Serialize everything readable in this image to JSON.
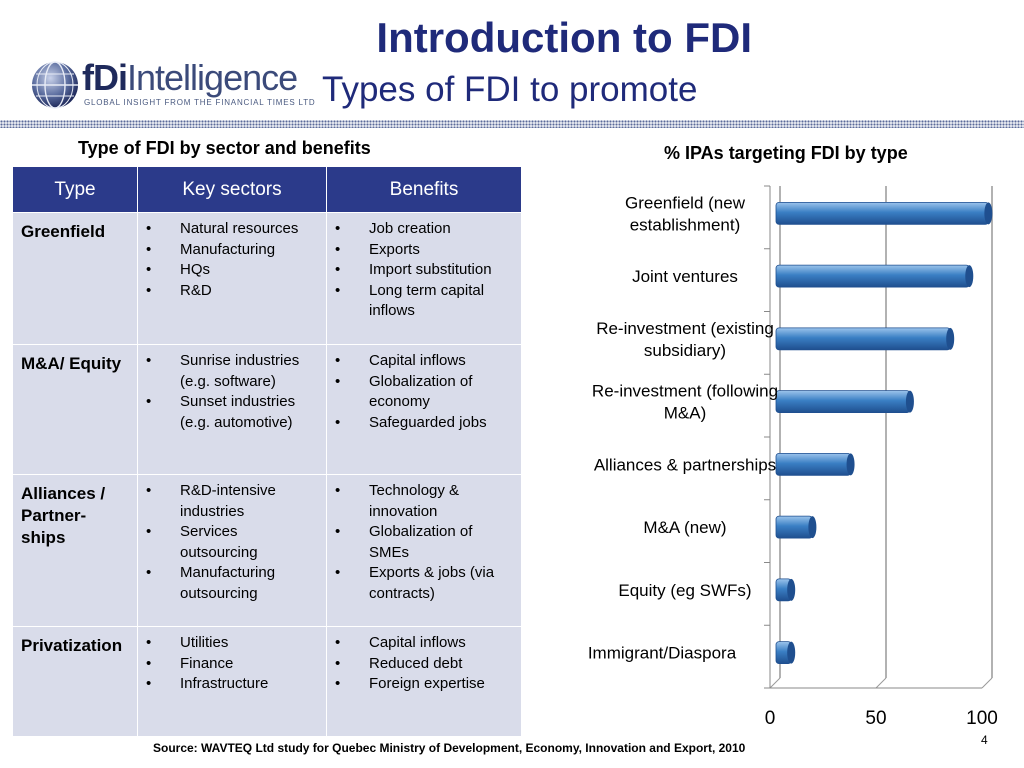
{
  "logo": {
    "text_bold": "fDi",
    "text_rest": "Intelligence",
    "tagline": "GLOBAL INSIGHT FROM THE FINANCIAL TIMES LTD"
  },
  "title": "Introduction to FDI",
  "subtitle": "Types of FDI to promote",
  "table": {
    "heading": "Type of FDI by sector and benefits",
    "columns": [
      "Type",
      "Key sectors",
      "Benefits"
    ],
    "rows": [
      {
        "type": "Greenfield",
        "sectors": [
          "Natural resources",
          "Manufacturing",
          "HQs",
          "R&D"
        ],
        "benefits": [
          "Job creation",
          "Exports",
          "Import substitution",
          "Long term capital inflows"
        ]
      },
      {
        "type": "M&A/ Equity",
        "sectors": [
          "Sunrise industries (e.g. software)",
          "Sunset industries (e.g. automotive)"
        ],
        "benefits": [
          "Capital inflows",
          "Globalization of economy",
          "Safeguarded jobs"
        ]
      },
      {
        "type": "Alliances / Partner-ships",
        "sectors": [
          "R&D-intensive industries",
          "Services outsourcing",
          "Manufacturing outsourcing"
        ],
        "benefits": [
          "Technology & innovation",
          "Globalization of SMEs",
          "Exports & jobs (via contracts)"
        ]
      },
      {
        "type": "Privatization",
        "sectors": [
          "Utilities",
          "Finance",
          "Infrastructure"
        ],
        "benefits": [
          "Capital inflows",
          "Reduced debt",
          "Foreign expertise"
        ]
      }
    ]
  },
  "chart_data": {
    "type": "bar",
    "orientation": "horizontal",
    "title": "% IPAs targeting FDI by type",
    "categories": [
      [
        "Greenfield (new",
        "establishment)"
      ],
      [
        "Joint ventures"
      ],
      [
        "Re-investment (existing",
        "subsidiary)"
      ],
      [
        "Re-investment (following",
        "M&A)"
      ],
      [
        "Alliances & partnerships"
      ],
      [
        "M&A (new)"
      ],
      [
        "Equity (eg SWFs)"
      ],
      [
        "Immigrant/Diaspora"
      ]
    ],
    "values": [
      103,
      94,
      85,
      66,
      38,
      20,
      10,
      10
    ],
    "xlim": [
      0,
      100
    ],
    "xticks": [
      "0",
      "50",
      "100"
    ],
    "grid": true,
    "bar_color": "#3a7fc4"
  },
  "source": "Source: WAVTEQ Ltd study for Quebec Ministry of Development, Economy, Innovation and  Export, 2010",
  "page_number": "4"
}
